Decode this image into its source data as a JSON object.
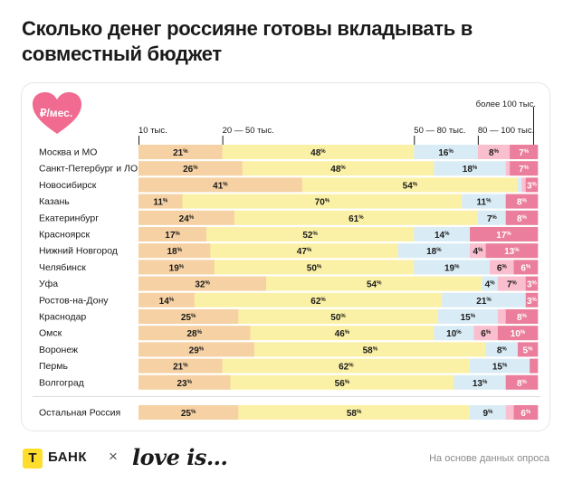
{
  "title": "Сколько денег россияне готовы вкладывать в совместный бюджет",
  "badge": "₽/мес.",
  "footer": {
    "bank_label": "БАНК",
    "cross": "×",
    "partner_label": "love is...",
    "note": "На основе данных опроса"
  },
  "colors": {
    "series": [
      "#f5d1a3",
      "#fbf1a6",
      "#d9ecf6",
      "#f9bfcf",
      "#ea7e9c"
    ],
    "label_fill": [
      "#1a1a1a",
      "#1a1a1a",
      "#1a1a1a",
      "#1a1a1a",
      "#ffffff"
    ],
    "row_track": "#e9e9e9",
    "heart": "#f06b8f"
  },
  "chart_data": {
    "type": "bar",
    "stacked": true,
    "orientation": "horizontal",
    "value_suffix": "%",
    "series_names": [
      "10 тыс.",
      "20 — 50 тыс.",
      "50 — 80 тыс.",
      "80 — 100 тыс.",
      "более 100 тыс."
    ],
    "categories": [
      "Москва и МО",
      "Санкт-Петербург и ЛО",
      "Новосибирск",
      "Казань",
      "Екатеринбург",
      "Красноярск",
      "Нижний Новгород",
      "Челябинск",
      "Уфа",
      "Ростов-на-Дону",
      "Краснодар",
      "Омск",
      "Воронеж",
      "Пермь",
      "Волгоград",
      "Остальная Россия"
    ],
    "values": [
      [
        21,
        48,
        16,
        8,
        7
      ],
      [
        26,
        48,
        18,
        1,
        7
      ],
      [
        41,
        54,
        1,
        1,
        3
      ],
      [
        11,
        70,
        11,
        0,
        8
      ],
      [
        24,
        61,
        7,
        0,
        8
      ],
      [
        17,
        52,
        14,
        0,
        17
      ],
      [
        18,
        47,
        18,
        4,
        13
      ],
      [
        19,
        50,
        19,
        6,
        6
      ],
      [
        32,
        54,
        4,
        7,
        3
      ],
      [
        14,
        62,
        21,
        0,
        3
      ],
      [
        25,
        50,
        15,
        2,
        8
      ],
      [
        28,
        46,
        10,
        6,
        10
      ],
      [
        29,
        58,
        8,
        0,
        5
      ],
      [
        21,
        62,
        15,
        0,
        2
      ],
      [
        23,
        56,
        13,
        0,
        8
      ],
      [
        25,
        58,
        9,
        2,
        6
      ]
    ],
    "labels": [
      [
        "21",
        "48",
        "16",
        "8",
        "7"
      ],
      [
        "26",
        "48",
        "18",
        "",
        "7"
      ],
      [
        "41",
        "54",
        "",
        "",
        "3"
      ],
      [
        "11",
        "70",
        "11",
        "",
        "8"
      ],
      [
        "24",
        "61",
        "7",
        "",
        "8"
      ],
      [
        "17",
        "52",
        "14",
        "",
        "17"
      ],
      [
        "18",
        "47",
        "18",
        "4",
        "13"
      ],
      [
        "19",
        "50",
        "19",
        "6",
        "6"
      ],
      [
        "32",
        "54",
        "4",
        "7",
        "3"
      ],
      [
        "14",
        "62",
        "21",
        "",
        "3"
      ],
      [
        "25",
        "50",
        "15",
        "",
        "8"
      ],
      [
        "28",
        "46",
        "10",
        "6",
        "10"
      ],
      [
        "29",
        "58",
        "8",
        "",
        "5"
      ],
      [
        "21",
        "62",
        "15",
        "",
        ""
      ],
      [
        "23",
        "56",
        "13",
        "",
        "8"
      ],
      [
        "25",
        "58",
        "9",
        "",
        "6"
      ]
    ]
  }
}
